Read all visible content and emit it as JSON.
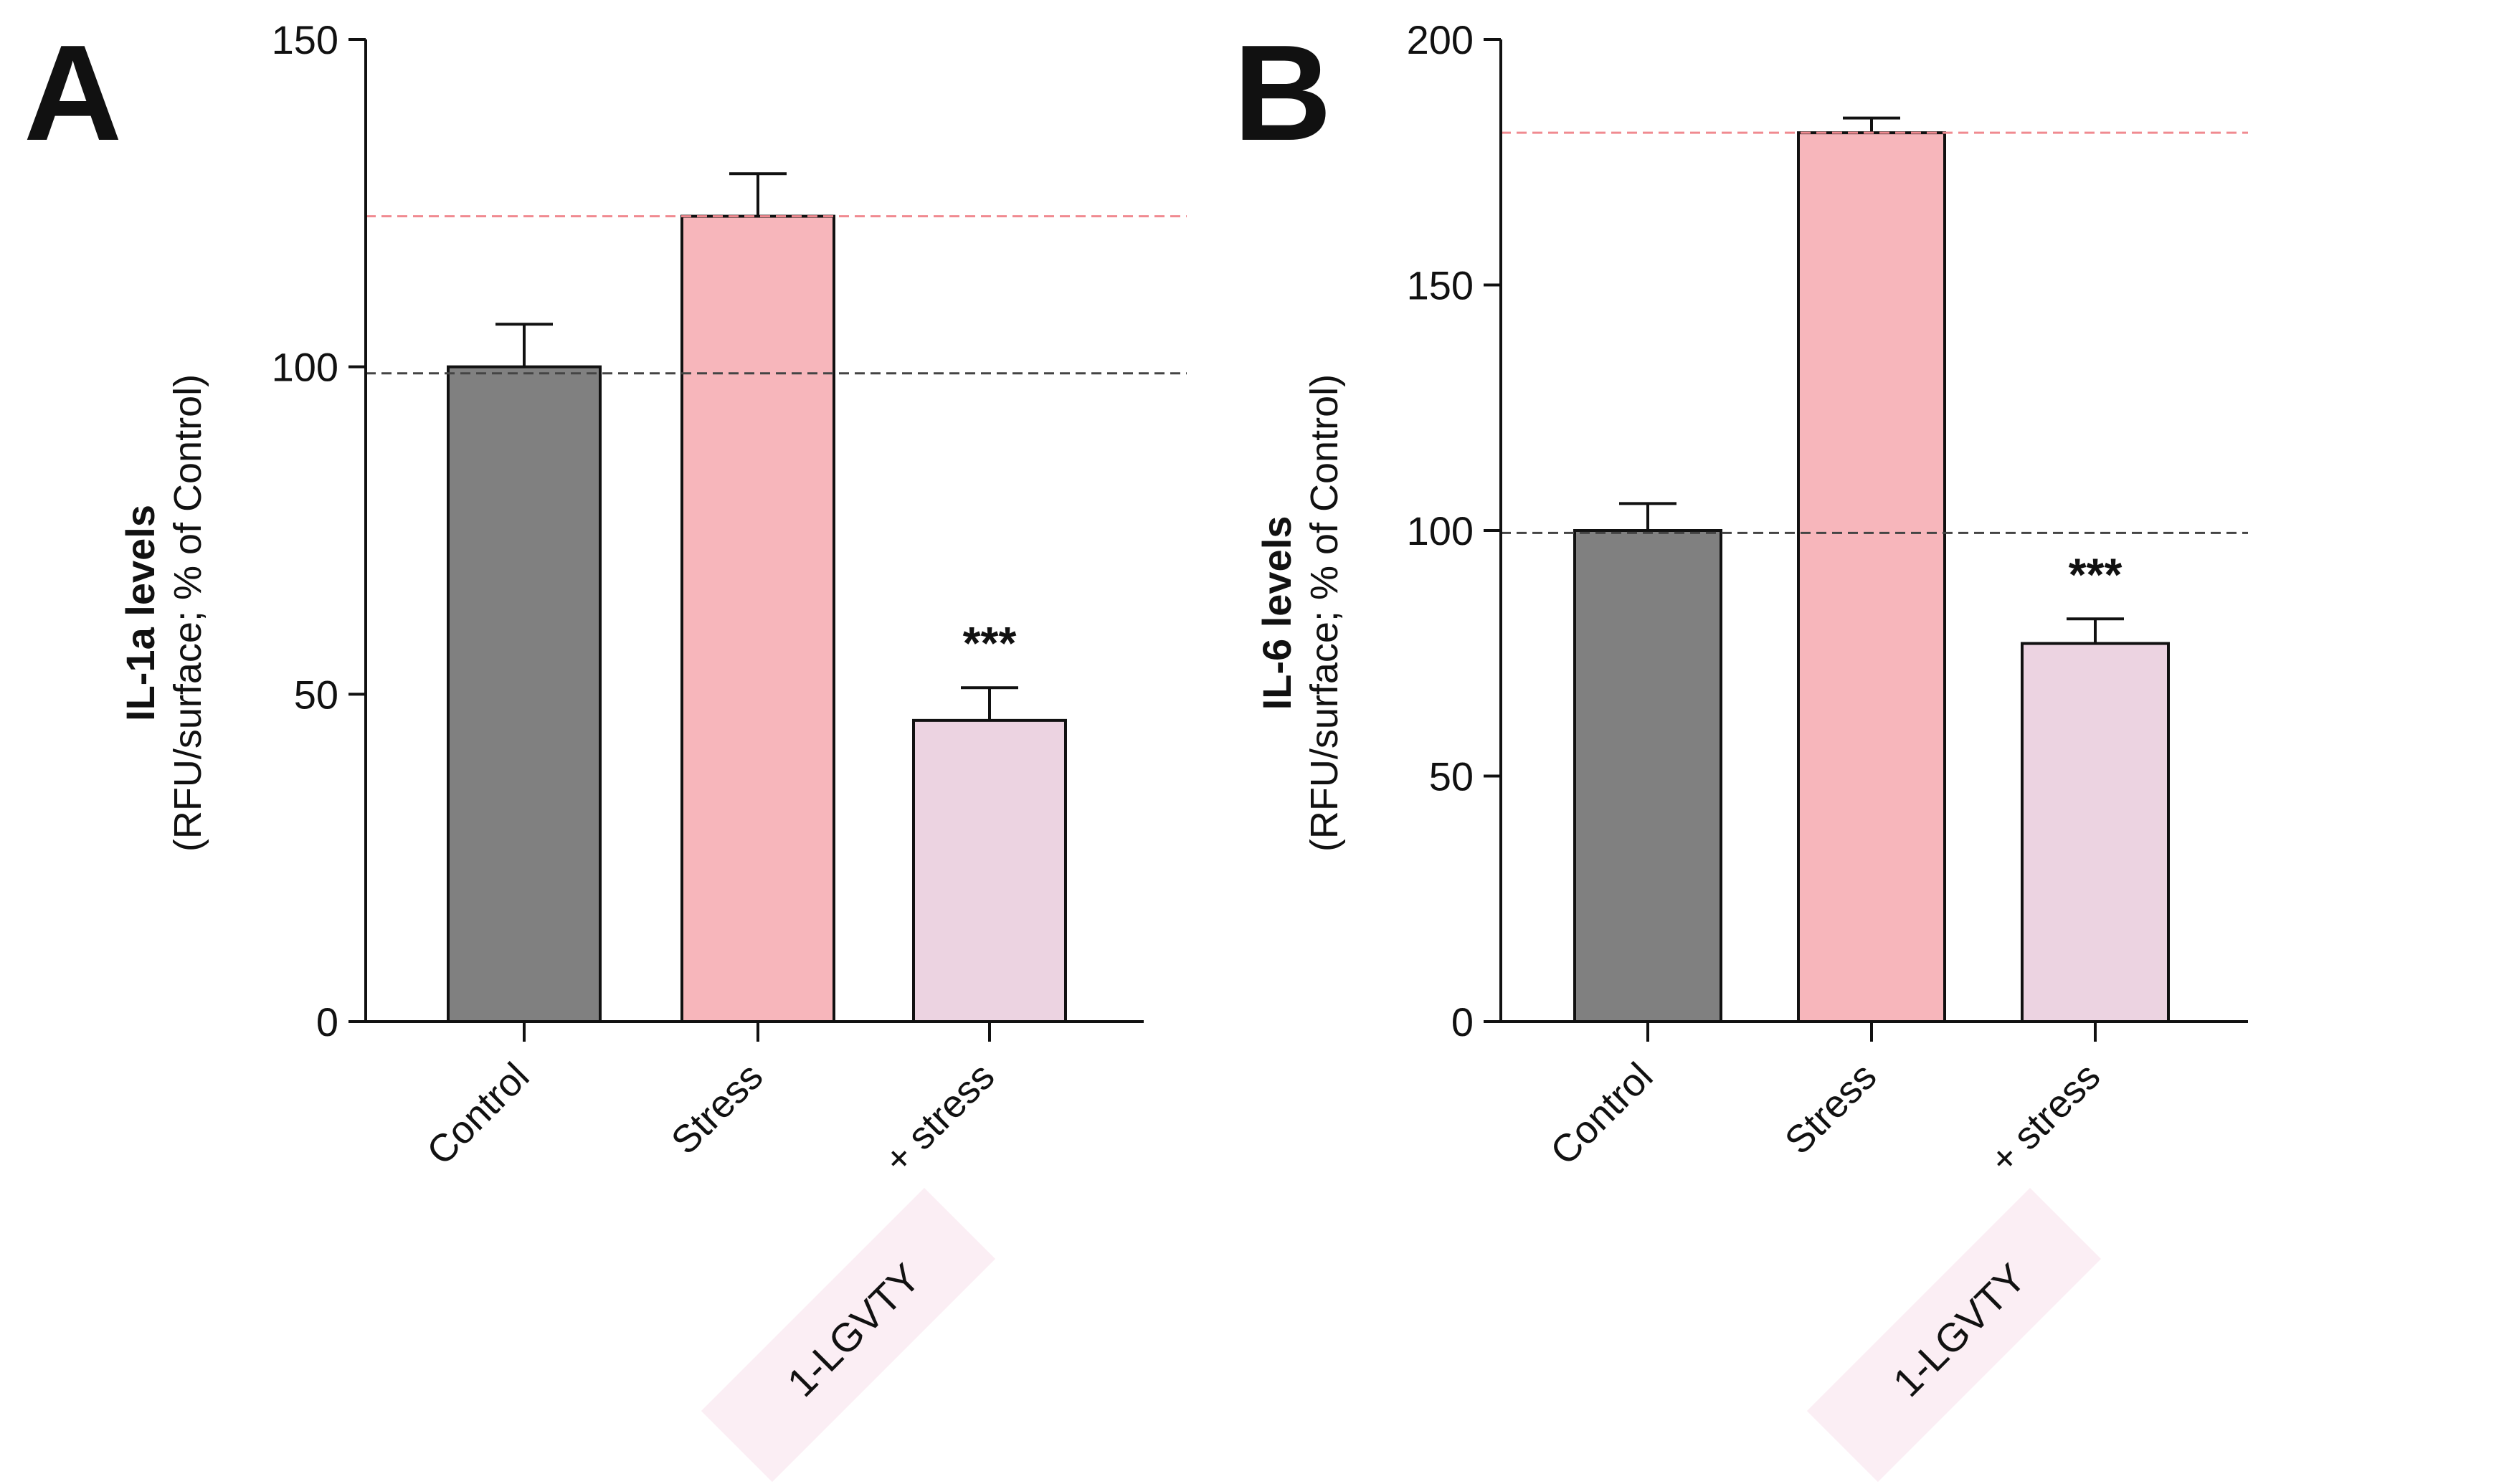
{
  "chart_data": [
    {
      "type": "bar",
      "panel_label": "A",
      "categories": [
        "Control",
        "Stress",
        "+ stress"
      ],
      "category_badges": [
        "",
        "",
        "1-LGVTY"
      ],
      "values": [
        100,
        123,
        46
      ],
      "errors": [
        6.5,
        6.5,
        5
      ],
      "significance": [
        "",
        "",
        "***"
      ],
      "ylabel_main": "IL-1a levels",
      "ylabel_sub": "(RFU/surface; % of Control)",
      "ylim": [
        0,
        150
      ],
      "yticks": [
        0,
        50,
        100,
        150
      ],
      "reference_lines": [
        {
          "value": 123,
          "color": "#f08a90"
        },
        {
          "value": 99,
          "color": "#444444"
        }
      ],
      "bar_colors": [
        "#808080",
        "#f7b6bb",
        "#ecd3e1"
      ]
    },
    {
      "type": "bar",
      "panel_label": "B",
      "categories": [
        "Control",
        "Stress",
        "+ stress"
      ],
      "category_badges": [
        "",
        "",
        "1-LGVTY"
      ],
      "values": [
        100,
        181,
        77
      ],
      "errors": [
        5.5,
        3,
        5
      ],
      "significance": [
        "",
        "",
        "***"
      ],
      "ylabel_main": "IL-6 levels",
      "ylabel_sub": "(RFU/surface; % of Control)",
      "ylim": [
        0,
        200
      ],
      "yticks": [
        0,
        50,
        100,
        150,
        200
      ],
      "reference_lines": [
        {
          "value": 181,
          "color": "#f08a90"
        },
        {
          "value": 99.5,
          "color": "#444444"
        }
      ],
      "bar_colors": [
        "#808080",
        "#f7b6bb",
        "#ecd3e1"
      ]
    }
  ]
}
